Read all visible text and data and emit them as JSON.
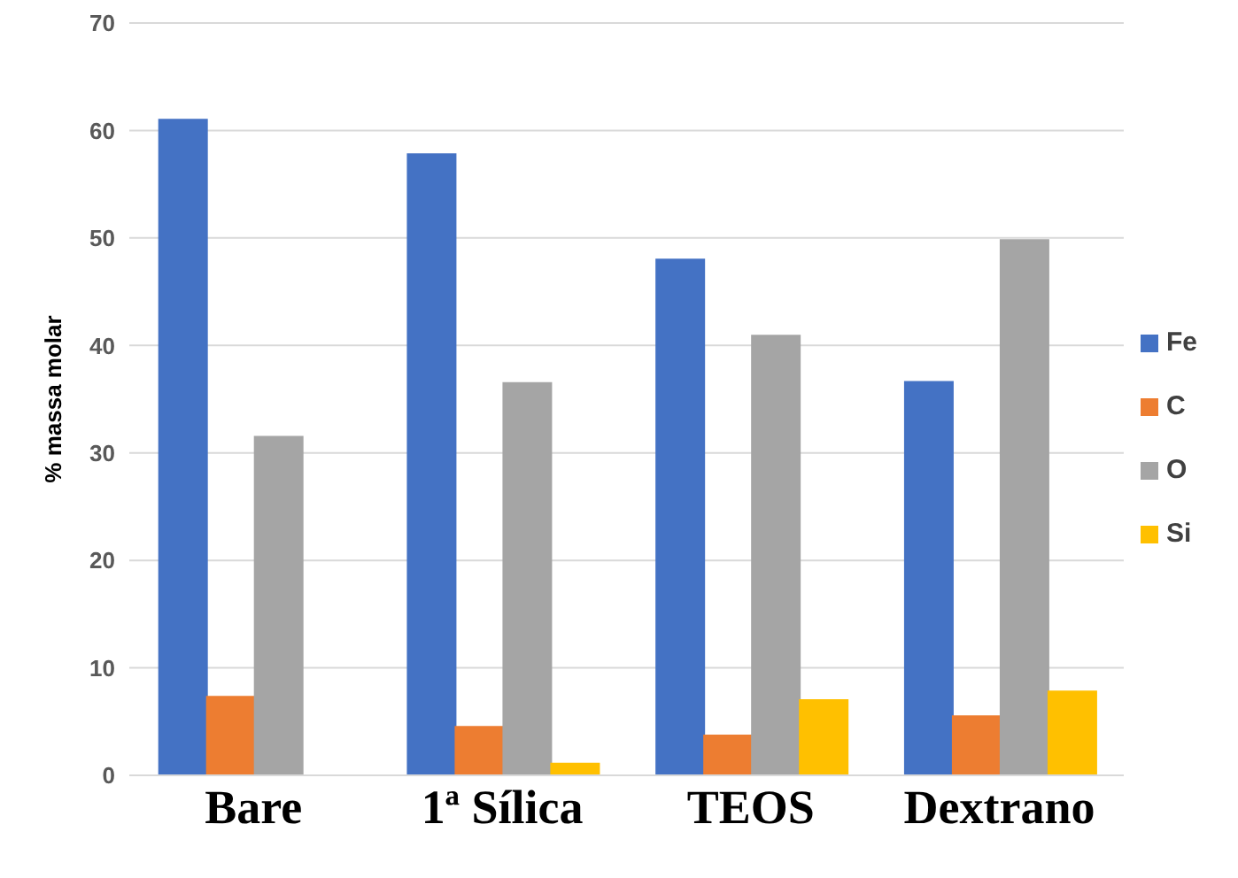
{
  "chart_data": {
    "type": "bar",
    "ylabel": "% massa molar",
    "categories": [
      "Bare",
      "1ª Sílica",
      "TEOS",
      "Dextrano"
    ],
    "series": [
      {
        "name": "Fe",
        "color": "#4472c4",
        "values": [
          61,
          57.8,
          48,
          36.6
        ]
      },
      {
        "name": "C",
        "color": "#ed7d31",
        "values": [
          7.3,
          4.5,
          3.7,
          5.5
        ]
      },
      {
        "name": "O",
        "color": "#a5a5a5",
        "values": [
          31.5,
          36.5,
          40.9,
          49.8
        ]
      },
      {
        "name": "Si",
        "color": "#ffc000",
        "values": [
          0,
          1.1,
          7,
          7.8
        ]
      }
    ],
    "ylim": [
      0,
      70
    ],
    "yticks": [
      0,
      10,
      20,
      30,
      40,
      50,
      60,
      70
    ],
    "grid": "y",
    "legend": "right"
  }
}
